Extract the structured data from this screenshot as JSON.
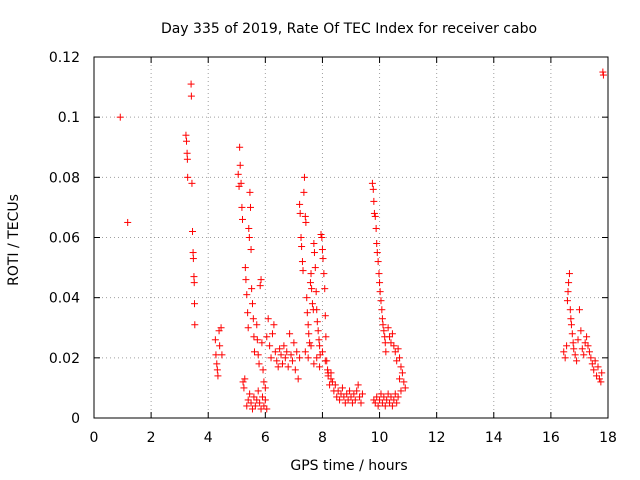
{
  "chart_data": {
    "type": "scatter",
    "title": "Day 335 of 2019, Rate Of TEC Index for receiver cabo",
    "xlabel": "GPS time / hours",
    "ylabel": "ROTI / TECUs",
    "xlim": [
      0,
      18
    ],
    "ylim": [
      0,
      0.12
    ],
    "x_ticks": [
      0,
      2,
      4,
      6,
      8,
      10,
      12,
      14,
      16,
      18
    ],
    "x_tick_labels": [
      "0",
      "2",
      "4",
      "6",
      "8",
      "10",
      "12",
      "14",
      "16",
      "18"
    ],
    "y_ticks": [
      0,
      0.02,
      0.04,
      0.06,
      0.08,
      0.1,
      0.12
    ],
    "y_tick_labels": [
      "0",
      "0.02",
      "0.04",
      "0.06",
      "0.08",
      "0.1",
      "0.12"
    ],
    "grid": true,
    "marker": "+",
    "color": "#ff0000",
    "series": [
      {
        "name": "ROTI",
        "points": [
          [
            0.92,
            0.1
          ],
          [
            1.18,
            0.065
          ],
          [
            3.22,
            0.094
          ],
          [
            3.24,
            0.092
          ],
          [
            3.26,
            0.088
          ],
          [
            3.27,
            0.086
          ],
          [
            3.28,
            0.08
          ],
          [
            3.4,
            0.111
          ],
          [
            3.41,
            0.107
          ],
          [
            3.43,
            0.078
          ],
          [
            3.45,
            0.062
          ],
          [
            3.47,
            0.055
          ],
          [
            3.48,
            0.053
          ],
          [
            3.5,
            0.047
          ],
          [
            3.51,
            0.045
          ],
          [
            3.52,
            0.038
          ],
          [
            3.53,
            0.031
          ],
          [
            4.25,
            0.026
          ],
          [
            4.27,
            0.021
          ],
          [
            4.3,
            0.018
          ],
          [
            4.32,
            0.016
          ],
          [
            4.34,
            0.014
          ],
          [
            4.38,
            0.029
          ],
          [
            4.4,
            0.024
          ],
          [
            4.45,
            0.03
          ],
          [
            4.48,
            0.021
          ],
          [
            5.05,
            0.081
          ],
          [
            5.08,
            0.077
          ],
          [
            5.1,
            0.09
          ],
          [
            5.12,
            0.084
          ],
          [
            5.15,
            0.078
          ],
          [
            5.18,
            0.07
          ],
          [
            5.2,
            0.066
          ],
          [
            5.22,
            0.012
          ],
          [
            5.25,
            0.01
          ],
          [
            5.28,
            0.013
          ],
          [
            5.3,
            0.05
          ],
          [
            5.32,
            0.046
          ],
          [
            5.35,
            0.041
          ],
          [
            5.38,
            0.035
          ],
          [
            5.4,
            0.03
          ],
          [
            5.42,
            0.063
          ],
          [
            5.44,
            0.06
          ],
          [
            5.46,
            0.075
          ],
          [
            5.48,
            0.07
          ],
          [
            5.5,
            0.056
          ],
          [
            5.52,
            0.043
          ],
          [
            5.55,
            0.038
          ],
          [
            5.58,
            0.033
          ],
          [
            5.6,
            0.027
          ],
          [
            5.62,
            0.022
          ],
          [
            5.35,
            0.004
          ],
          [
            5.4,
            0.006
          ],
          [
            5.45,
            0.008
          ],
          [
            5.5,
            0.005
          ],
          [
            5.55,
            0.003
          ],
          [
            5.6,
            0.007
          ],
          [
            5.65,
            0.004
          ],
          [
            5.7,
            0.006
          ],
          [
            5.75,
            0.009
          ],
          [
            5.8,
            0.005
          ],
          [
            5.85,
            0.003
          ],
          [
            5.9,
            0.007
          ],
          [
            5.95,
            0.004
          ],
          [
            6.0,
            0.006
          ],
          [
            6.05,
            0.003
          ],
          [
            5.7,
            0.031
          ],
          [
            5.72,
            0.026
          ],
          [
            5.75,
            0.021
          ],
          [
            5.78,
            0.018
          ],
          [
            5.82,
            0.044
          ],
          [
            5.85,
            0.046
          ],
          [
            5.88,
            0.025
          ],
          [
            5.92,
            0.016
          ],
          [
            5.95,
            0.012
          ],
          [
            6.0,
            0.01
          ],
          [
            6.05,
            0.027
          ],
          [
            6.1,
            0.033
          ],
          [
            6.15,
            0.024
          ],
          [
            6.2,
            0.02
          ],
          [
            6.25,
            0.028
          ],
          [
            6.3,
            0.031
          ],
          [
            6.35,
            0.022
          ],
          [
            6.4,
            0.019
          ],
          [
            6.45,
            0.017
          ],
          [
            6.5,
            0.023
          ],
          [
            6.55,
            0.021
          ],
          [
            6.6,
            0.018
          ],
          [
            6.65,
            0.024
          ],
          [
            6.7,
            0.02
          ],
          [
            6.75,
            0.022
          ],
          [
            6.8,
            0.017
          ],
          [
            6.85,
            0.028
          ],
          [
            6.9,
            0.021
          ],
          [
            6.95,
            0.019
          ],
          [
            7.0,
            0.025
          ],
          [
            7.05,
            0.016
          ],
          [
            7.1,
            0.022
          ],
          [
            7.15,
            0.013
          ],
          [
            7.2,
            0.02
          ],
          [
            7.2,
            0.071
          ],
          [
            7.22,
            0.068
          ],
          [
            7.25,
            0.06
          ],
          [
            7.27,
            0.057
          ],
          [
            7.3,
            0.052
          ],
          [
            7.32,
            0.049
          ],
          [
            7.35,
            0.075
          ],
          [
            7.37,
            0.08
          ],
          [
            7.4,
            0.067
          ],
          [
            7.42,
            0.065
          ],
          [
            7.45,
            0.04
          ],
          [
            7.47,
            0.035
          ],
          [
            7.5,
            0.031
          ],
          [
            7.52,
            0.028
          ],
          [
            7.55,
            0.025
          ],
          [
            7.58,
            0.045
          ],
          [
            7.6,
            0.048
          ],
          [
            7.62,
            0.043
          ],
          [
            7.65,
            0.038
          ],
          [
            7.68,
            0.036
          ],
          [
            7.7,
            0.058
          ],
          [
            7.72,
            0.055
          ],
          [
            7.75,
            0.05
          ],
          [
            7.78,
            0.042
          ],
          [
            7.8,
            0.036
          ],
          [
            7.82,
            0.032
          ],
          [
            7.85,
            0.029
          ],
          [
            7.88,
            0.026
          ],
          [
            7.9,
            0.024
          ],
          [
            7.92,
            0.021
          ],
          [
            7.95,
            0.061
          ],
          [
            7.98,
            0.06
          ],
          [
            8.0,
            0.056
          ],
          [
            8.02,
            0.053
          ],
          [
            8.05,
            0.048
          ],
          [
            8.08,
            0.043
          ],
          [
            8.1,
            0.034
          ],
          [
            8.12,
            0.027
          ],
          [
            8.15,
            0.019
          ],
          [
            8.18,
            0.016
          ],
          [
            8.2,
            0.014
          ],
          [
            8.25,
            0.011
          ],
          [
            8.3,
            0.015
          ],
          [
            8.35,
            0.012
          ],
          [
            8.4,
            0.009
          ],
          [
            8.45,
            0.011
          ],
          [
            8.5,
            0.007
          ],
          [
            8.55,
            0.009
          ],
          [
            8.6,
            0.006
          ],
          [
            8.65,
            0.008
          ],
          [
            8.7,
            0.01
          ],
          [
            8.75,
            0.007
          ],
          [
            8.8,
            0.005
          ],
          [
            8.85,
            0.008
          ],
          [
            8.9,
            0.006
          ],
          [
            8.95,
            0.009
          ],
          [
            9.0,
            0.007
          ],
          [
            9.05,
            0.005
          ],
          [
            9.1,
            0.008
          ],
          [
            9.15,
            0.006
          ],
          [
            9.2,
            0.009
          ],
          [
            9.25,
            0.011
          ],
          [
            9.3,
            0.007
          ],
          [
            9.35,
            0.005
          ],
          [
            9.4,
            0.008
          ],
          [
            7.4,
            0.022
          ],
          [
            7.5,
            0.02
          ],
          [
            7.6,
            0.024
          ],
          [
            7.7,
            0.018
          ],
          [
            7.8,
            0.02
          ],
          [
            7.9,
            0.017
          ],
          [
            8.0,
            0.022
          ],
          [
            8.1,
            0.019
          ],
          [
            8.2,
            0.015
          ],
          [
            8.3,
            0.013
          ],
          [
            9.75,
            0.078
          ],
          [
            9.78,
            0.076
          ],
          [
            9.8,
            0.072
          ],
          [
            9.82,
            0.068
          ],
          [
            9.85,
            0.067
          ],
          [
            9.88,
            0.063
          ],
          [
            9.9,
            0.058
          ],
          [
            9.92,
            0.055
          ],
          [
            9.95,
            0.052
          ],
          [
            9.98,
            0.048
          ],
          [
            10.0,
            0.045
          ],
          [
            10.02,
            0.042
          ],
          [
            10.05,
            0.039
          ],
          [
            10.08,
            0.036
          ],
          [
            10.1,
            0.033
          ],
          [
            10.12,
            0.031
          ],
          [
            10.15,
            0.029
          ],
          [
            10.18,
            0.027
          ],
          [
            10.2,
            0.025
          ],
          [
            10.22,
            0.022
          ],
          [
            9.8,
            0.006
          ],
          [
            9.85,
            0.005
          ],
          [
            9.9,
            0.007
          ],
          [
            9.95,
            0.004
          ],
          [
            10.0,
            0.006
          ],
          [
            10.05,
            0.008
          ],
          [
            10.1,
            0.005
          ],
          [
            10.15,
            0.007
          ],
          [
            10.2,
            0.004
          ],
          [
            10.25,
            0.006
          ],
          [
            10.3,
            0.008
          ],
          [
            10.35,
            0.005
          ],
          [
            10.4,
            0.007
          ],
          [
            10.45,
            0.004
          ],
          [
            10.5,
            0.006
          ],
          [
            10.55,
            0.008
          ],
          [
            10.6,
            0.005
          ],
          [
            10.65,
            0.007
          ],
          [
            10.3,
            0.03
          ],
          [
            10.35,
            0.027
          ],
          [
            10.4,
            0.025
          ],
          [
            10.45,
            0.028
          ],
          [
            10.5,
            0.024
          ],
          [
            10.55,
            0.022
          ],
          [
            10.6,
            0.019
          ],
          [
            10.65,
            0.023
          ],
          [
            10.7,
            0.02
          ],
          [
            10.75,
            0.017
          ],
          [
            10.8,
            0.015
          ],
          [
            10.85,
            0.012
          ],
          [
            10.9,
            0.01
          ],
          [
            10.7,
            0.013
          ],
          [
            10.75,
            0.009
          ],
          [
            16.45,
            0.022
          ],
          [
            16.5,
            0.02
          ],
          [
            16.55,
            0.024
          ],
          [
            16.58,
            0.039
          ],
          [
            16.6,
            0.042
          ],
          [
            16.62,
            0.045
          ],
          [
            16.65,
            0.048
          ],
          [
            16.68,
            0.036
          ],
          [
            16.7,
            0.033
          ],
          [
            16.72,
            0.031
          ],
          [
            16.75,
            0.028
          ],
          [
            16.78,
            0.025
          ],
          [
            16.8,
            0.023
          ],
          [
            16.85,
            0.021
          ],
          [
            16.9,
            0.019
          ],
          [
            16.95,
            0.026
          ],
          [
            17.0,
            0.036
          ],
          [
            17.05,
            0.029
          ],
          [
            17.1,
            0.023
          ],
          [
            17.15,
            0.021
          ],
          [
            17.2,
            0.025
          ],
          [
            17.25,
            0.027
          ],
          [
            17.3,
            0.024
          ],
          [
            17.35,
            0.022
          ],
          [
            17.4,
            0.02
          ],
          [
            17.45,
            0.018
          ],
          [
            17.5,
            0.016
          ],
          [
            17.55,
            0.019
          ],
          [
            17.6,
            0.014
          ],
          [
            17.65,
            0.017
          ],
          [
            17.7,
            0.013
          ],
          [
            17.75,
            0.012
          ],
          [
            17.78,
            0.015
          ],
          [
            17.82,
            0.115
          ],
          [
            17.84,
            0.114
          ]
        ]
      }
    ]
  }
}
